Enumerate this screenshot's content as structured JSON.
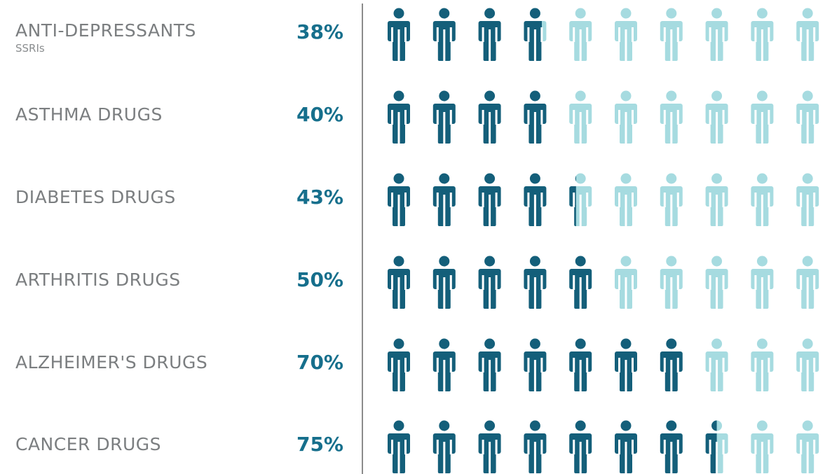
{
  "chart_data": {
    "type": "pictogram",
    "icons_per_row": 10,
    "colors": {
      "filled": "#145f7a",
      "empty": "#a6dbe0",
      "percent_text": "#166f8c",
      "label_text": "#7b7e80"
    },
    "rows": [
      {
        "label": "ANTI-DEPRESSANTS",
        "sublabel": "SSRIs",
        "percent": "38%",
        "value": 38
      },
      {
        "label": "ASTHMA DRUGS",
        "sublabel": "",
        "percent": "40%",
        "value": 40
      },
      {
        "label": "DIABETES DRUGS",
        "sublabel": "",
        "percent": "43%",
        "value": 43
      },
      {
        "label": "ARTHRITIS DRUGS",
        "sublabel": "",
        "percent": "50%",
        "value": 50
      },
      {
        "label": "ALZHEIMER'S DRUGS",
        "sublabel": "",
        "percent": "70%",
        "value": 70
      },
      {
        "label": "CANCER DRUGS",
        "sublabel": "",
        "percent": "75%",
        "value": 75
      }
    ]
  }
}
